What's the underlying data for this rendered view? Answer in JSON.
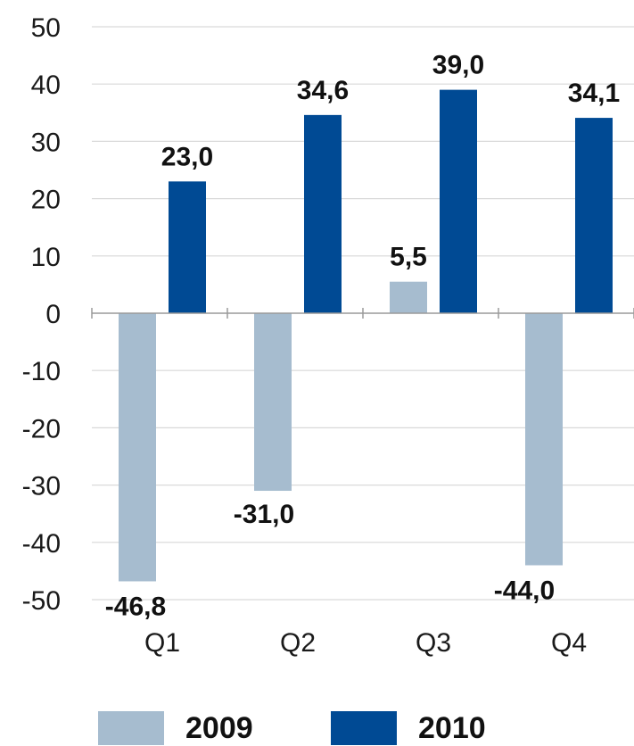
{
  "chart_data": {
    "type": "bar",
    "categories": [
      "Q1",
      "Q2",
      "Q3",
      "Q4"
    ],
    "series": [
      {
        "name": "2009",
        "color": "#a6bccf",
        "values": [
          -46.8,
          -31.0,
          5.5,
          -44.0
        ],
        "labels": [
          "-46,8",
          "-31,0",
          "5,5",
          "-44,0"
        ]
      },
      {
        "name": "2010",
        "color": "#004a94",
        "values": [
          23.0,
          34.6,
          39.0,
          34.1
        ],
        "labels": [
          "23,0",
          "34,6",
          "39,0",
          "34,1"
        ]
      }
    ],
    "yticks": [
      "50",
      "40",
      "30",
      "20",
      "10",
      "0",
      "-10",
      "-20",
      "-30",
      "-40",
      "-50"
    ],
    "ylim": [
      -50,
      50
    ],
    "grid": true,
    "legend_position": "bottom"
  }
}
